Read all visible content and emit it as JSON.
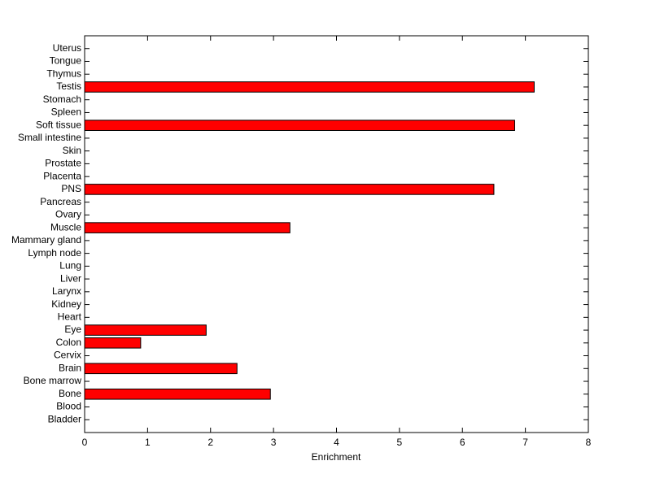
{
  "chart_data": {
    "type": "barh",
    "xlabel": "Enrichment",
    "categories": [
      "Bladder",
      "Blood",
      "Bone",
      "Bone marrow",
      "Brain",
      "Cervix",
      "Colon",
      "Eye",
      "Heart",
      "Kidney",
      "Larynx",
      "Liver",
      "Lung",
      "Lymph node",
      "Mammary gland",
      "Muscle",
      "Ovary",
      "Pancreas",
      "PNS",
      "Placenta",
      "Prostate",
      "Skin",
      "Small intestine",
      "Soft tissue",
      "Spleen",
      "Stomach",
      "Testis",
      "Thymus",
      "Tongue",
      "Uterus"
    ],
    "values": [
      0,
      0,
      2.95,
      0,
      2.42,
      0,
      0.89,
      1.93,
      0,
      0,
      0,
      0,
      0,
      0,
      0,
      3.26,
      0,
      0,
      6.5,
      0,
      0,
      0,
      0,
      6.83,
      0,
      0,
      7.14,
      0,
      0,
      0
    ],
    "color": "#ff0000",
    "xlim": [
      0,
      8
    ],
    "xticks": [
      0,
      1,
      2,
      3,
      4,
      5,
      6,
      7,
      8
    ]
  }
}
